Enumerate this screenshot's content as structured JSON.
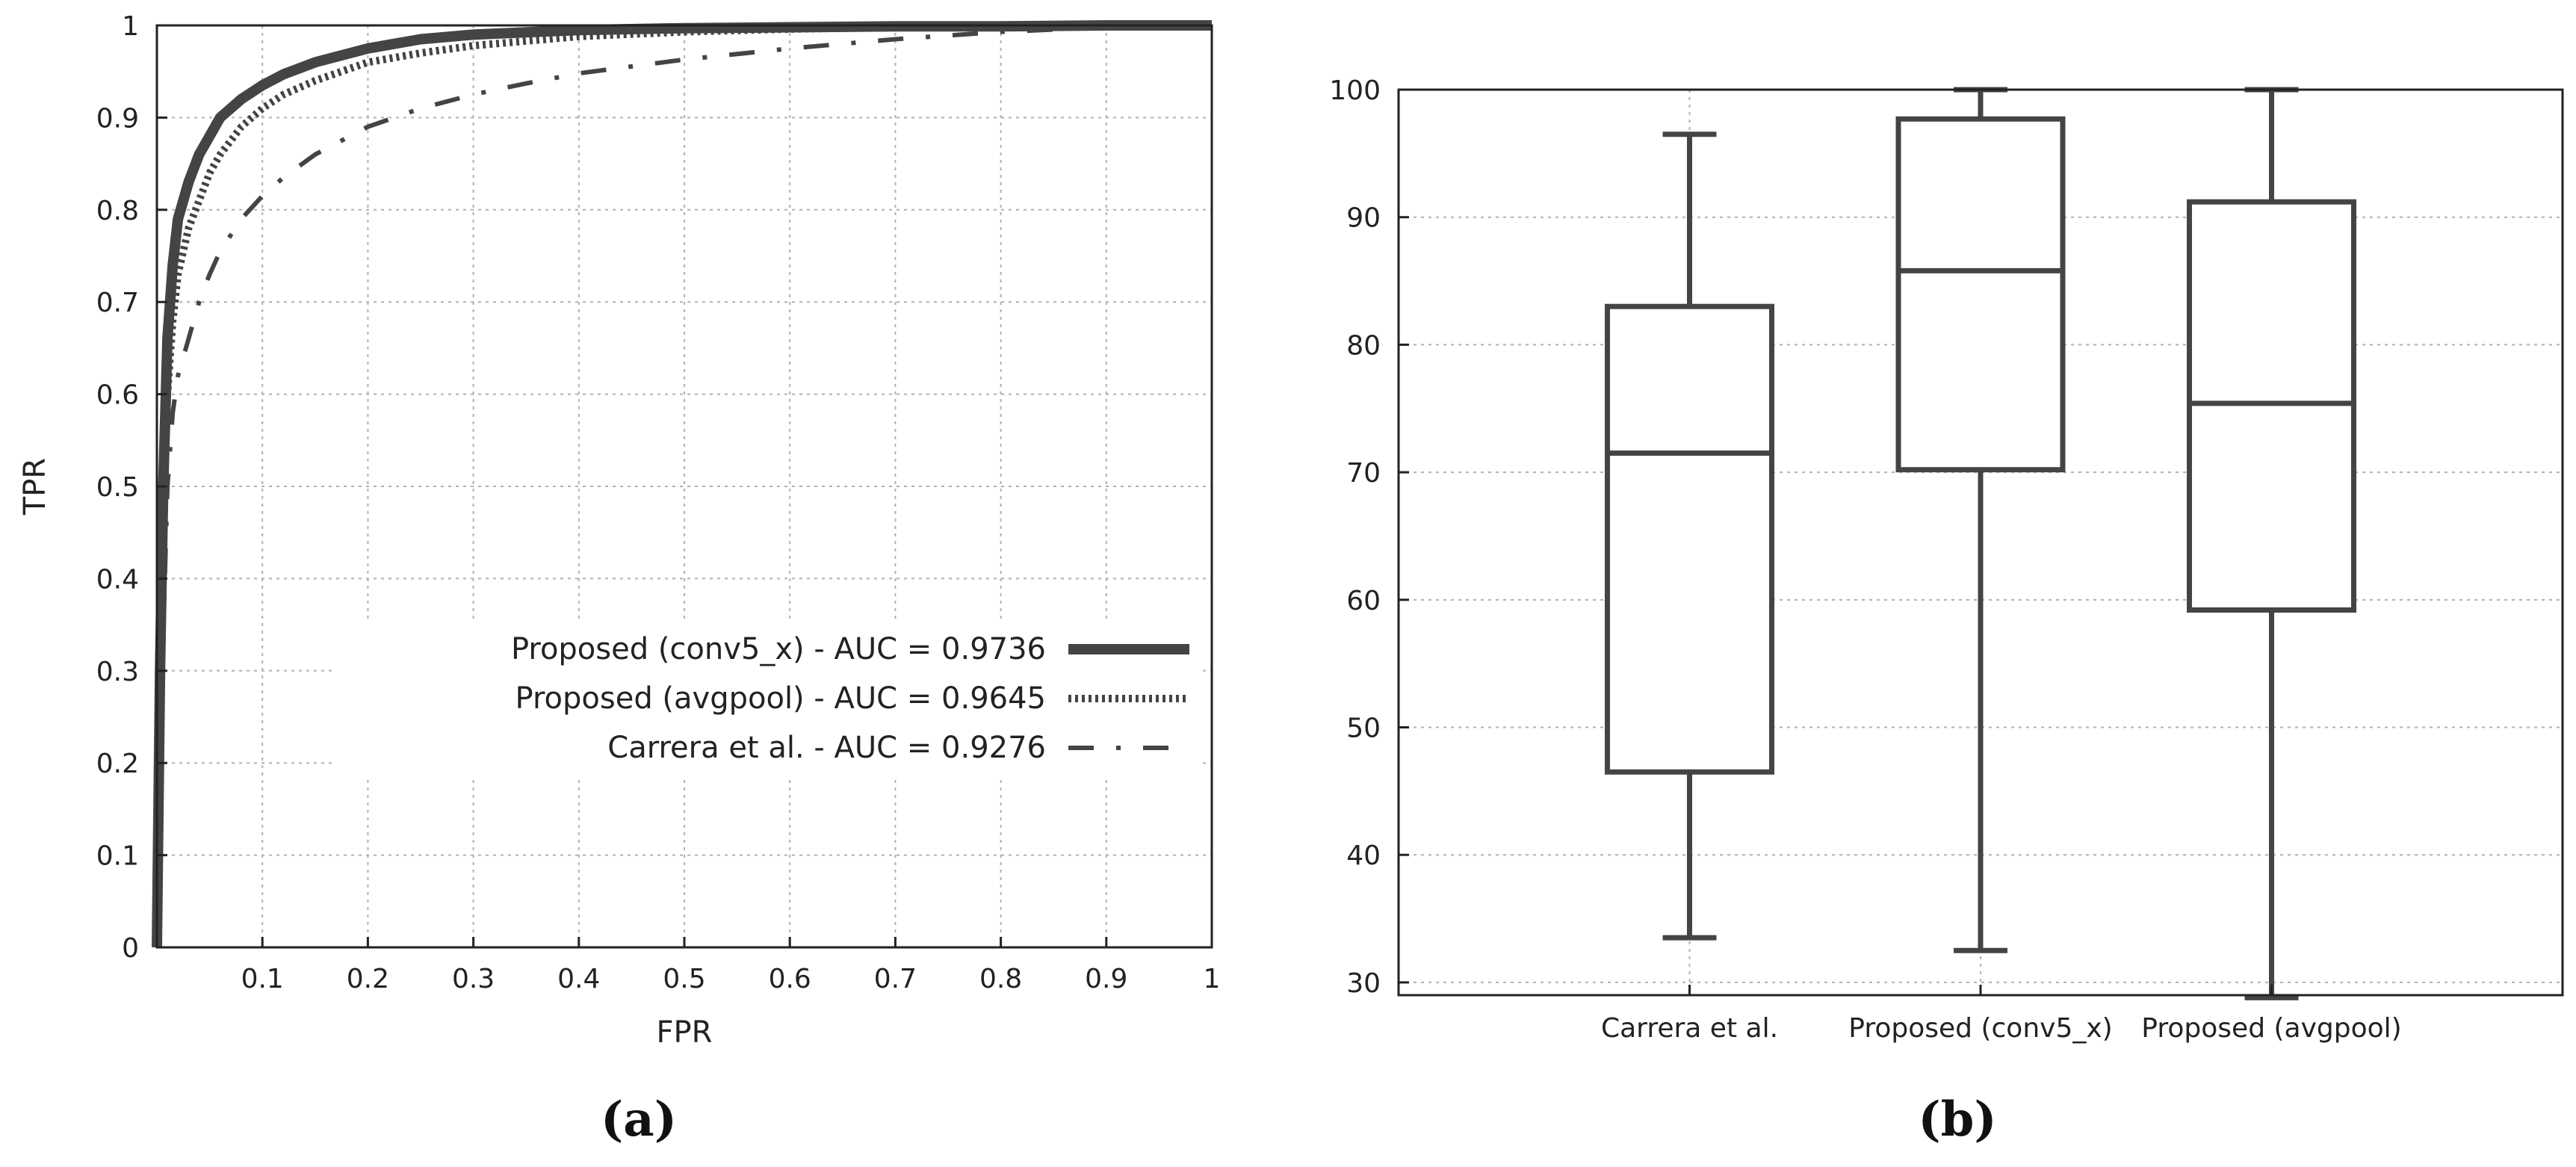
{
  "panels": {
    "a": "(a)",
    "b": "(b)"
  },
  "chart_data": [
    {
      "type": "line",
      "title": "",
      "xlabel": "FPR",
      "ylabel": "TPR",
      "xlim": [
        0,
        1
      ],
      "ylim": [
        0,
        1
      ],
      "grid": true,
      "legend_position": "bottom-right",
      "x_ticks": [
        "0.1",
        "0.2",
        "0.3",
        "0.4",
        "0.5",
        "0.6",
        "0.7",
        "0.8",
        "0.9",
        "1"
      ],
      "y_ticks": [
        "0",
        "0.1",
        "0.2",
        "0.3",
        "0.4",
        "0.5",
        "0.6",
        "0.7",
        "0.8",
        "0.9",
        "1"
      ],
      "x_tick_values": [
        0.1,
        0.2,
        0.3,
        0.4,
        0.5,
        0.6,
        0.7,
        0.8,
        0.9,
        1.0
      ],
      "y_tick_values": [
        0,
        0.1,
        0.2,
        0.3,
        0.4,
        0.5,
        0.6,
        0.7,
        0.8,
        0.9,
        1.0
      ],
      "series": [
        {
          "name": "Proposed (conv5_x) - AUC = 0.9736",
          "style": "solid",
          "color": "#444444",
          "x": [
            0.0,
            0.003,
            0.006,
            0.01,
            0.015,
            0.02,
            0.03,
            0.04,
            0.05,
            0.06,
            0.07,
            0.08,
            0.1,
            0.12,
            0.15,
            0.2,
            0.25,
            0.3,
            0.4,
            0.5,
            0.6,
            0.7,
            0.8,
            0.9,
            1.0
          ],
          "y": [
            0.0,
            0.3,
            0.5,
            0.66,
            0.74,
            0.79,
            0.83,
            0.86,
            0.88,
            0.9,
            0.91,
            0.92,
            0.935,
            0.947,
            0.96,
            0.975,
            0.985,
            0.99,
            0.995,
            0.997,
            0.998,
            0.999,
            0.999,
            1.0,
            1.0
          ]
        },
        {
          "name": "Proposed (avgpool) - AUC = 0.9645",
          "style": "dotted",
          "color": "#444444",
          "x": [
            0.0,
            0.003,
            0.006,
            0.01,
            0.015,
            0.02,
            0.03,
            0.04,
            0.05,
            0.06,
            0.08,
            0.1,
            0.12,
            0.15,
            0.2,
            0.25,
            0.3,
            0.4,
            0.5,
            0.6,
            0.7,
            0.8,
            0.9,
            1.0
          ],
          "y": [
            0.0,
            0.28,
            0.46,
            0.6,
            0.68,
            0.73,
            0.78,
            0.81,
            0.84,
            0.86,
            0.89,
            0.91,
            0.925,
            0.94,
            0.96,
            0.97,
            0.978,
            0.988,
            0.993,
            0.996,
            0.998,
            0.999,
            1.0,
            1.0
          ]
        },
        {
          "name": "Carrera et al. - AUC = 0.9276",
          "style": "dashdot",
          "color": "#444444",
          "x": [
            0.0,
            0.005,
            0.01,
            0.015,
            0.02,
            0.03,
            0.04,
            0.05,
            0.06,
            0.08,
            0.1,
            0.12,
            0.15,
            0.2,
            0.25,
            0.3,
            0.35,
            0.4,
            0.5,
            0.6,
            0.7,
            0.8,
            0.9,
            1.0
          ],
          "y": [
            0.0,
            0.3,
            0.5,
            0.58,
            0.62,
            0.66,
            0.7,
            0.73,
            0.755,
            0.79,
            0.815,
            0.835,
            0.86,
            0.89,
            0.91,
            0.925,
            0.937,
            0.948,
            0.963,
            0.975,
            0.985,
            0.993,
            0.998,
            1.0
          ]
        }
      ]
    },
    {
      "type": "box",
      "title": "",
      "xlabel": "",
      "ylabel": "",
      "ylim": [
        29,
        100
      ],
      "grid": true,
      "categories": [
        "Carrera et al.",
        "Proposed (conv5_x)",
        "Proposed (avgpool)"
      ],
      "y_ticks": [
        "30",
        "40",
        "50",
        "60",
        "70",
        "80",
        "90",
        "100"
      ],
      "y_tick_values": [
        30,
        40,
        50,
        60,
        70,
        80,
        90,
        100
      ],
      "boxes": [
        {
          "min": 33.5,
          "q1": 46.5,
          "median": 71.5,
          "q3": 83,
          "max": 96.5
        },
        {
          "min": 32.5,
          "q1": 70.2,
          "median": 85.8,
          "q3": 97.7,
          "max": 100
        },
        {
          "min": 28.8,
          "q1": 59.2,
          "median": 75.4,
          "q3": 91.2,
          "max": 100
        }
      ]
    }
  ]
}
